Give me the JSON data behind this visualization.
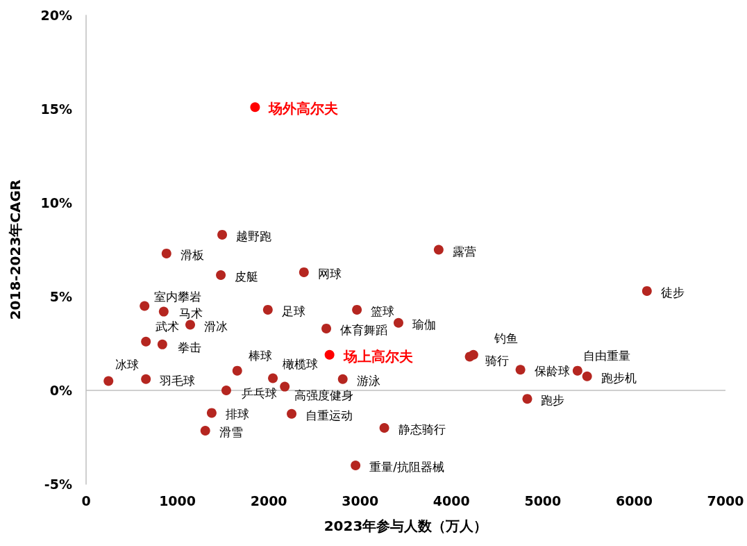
{
  "chart_data": {
    "type": "scatter",
    "xlabel": "2023年参与人数（万人）",
    "ylabel": "2018-2023年CAGR",
    "xlim": [
      0,
      7000
    ],
    "xticks": [
      0,
      1000,
      2000,
      3000,
      4000,
      5000,
      6000,
      7000
    ],
    "ylim": [
      -5,
      20
    ],
    "yticks": [
      {
        "value": -5,
        "label": "-5%"
      },
      {
        "value": 0,
        "label": "0%"
      },
      {
        "value": 5,
        "label": "5%"
      },
      {
        "value": 10,
        "label": "10%"
      },
      {
        "value": 15,
        "label": "15%"
      },
      {
        "value": 20,
        "label": "20%"
      }
    ],
    "grid": false,
    "marker": "circle",
    "ref_lines": [
      {
        "axis": "y",
        "value": 0,
        "color": "#bfbfbf"
      }
    ],
    "series": [
      {
        "color": "#b52620",
        "x": [
          1490,
          880,
          1475,
          2385,
          3860,
          6140,
          640,
          850,
          1990,
          2965,
          3420,
          1140,
          2630,
          655,
          835,
          4240,
          4200,
          1655,
          2045,
          2175,
          2810,
          1535,
          245,
          655,
          4755,
          5380,
          5485,
          4830,
          1375,
          2250,
          1305,
          3265,
          2950
        ],
        "values": [
          8.3,
          7.3,
          6.15,
          6.3,
          7.5,
          5.3,
          4.5,
          4.2,
          4.3,
          4.3,
          3.6,
          3.5,
          3.3,
          2.6,
          2.45,
          1.9,
          1.8,
          1.05,
          0.65,
          0.2,
          0.6,
          0.0,
          0.5,
          0.6,
          1.1,
          1.05,
          0.75,
          -0.45,
          -1.2,
          -1.25,
          -2.15,
          -2.0,
          -4.0
        ],
        "value_labels": [
          "越野跑",
          "滑板",
          "皮艇",
          "网球",
          "露营",
          "徒步",
          "室内攀岩",
          "马术",
          "足球",
          "篮球",
          "瑜伽",
          "滑冰",
          "体育舞蹈",
          "武术",
          "拳击",
          "钓鱼",
          "骑行",
          "棒球",
          "橄榄球",
          "高强度健身",
          "游泳",
          "乒乓球",
          "冰球",
          "羽毛球",
          "保龄球",
          "自由重量",
          "跑步机",
          "跑步",
          "排球",
          "自重运动",
          "滑雪",
          "静态骑行",
          "重量/抗阻器械"
        ]
      },
      {
        "color": "#ff0000",
        "x": [
          1850,
          2665
        ],
        "values": [
          15.1,
          1.9
        ],
        "value_labels": [
          "场外高尔夫",
          "场上高尔夫"
        ]
      }
    ]
  }
}
